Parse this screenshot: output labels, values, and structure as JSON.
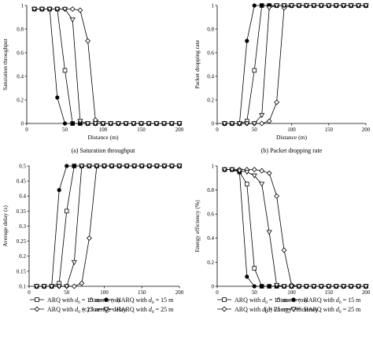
{
  "chart_data": [
    {
      "type": "line",
      "caption": "(a)  Saturation throughput",
      "xlabel": "Distance (m)",
      "ylabel": "Saturation throughput",
      "xlim": [
        0,
        200
      ],
      "ylim": [
        0,
        1
      ],
      "xticks": [
        "0",
        "50",
        "100",
        "150",
        "200"
      ],
      "yticks": [
        "0",
        "0.2",
        "0.4",
        "0.6",
        "0.8",
        "1"
      ],
      "x": [
        10,
        20,
        30,
        40,
        50,
        60,
        70,
        80,
        90,
        100,
        110,
        120,
        130,
        140,
        150,
        160,
        170,
        180,
        190,
        200
      ],
      "series": [
        {
          "marker": "square",
          "values": [
            0.97,
            0.97,
            0.97,
            0.97,
            0.45,
            0.0,
            0.0,
            0.0,
            0.0,
            0.0,
            0.0,
            0.0,
            0.0,
            0.0,
            0.0,
            0.0,
            0.0,
            0.0,
            0.0,
            0.0
          ]
        },
        {
          "marker": "dot",
          "values": [
            0.97,
            0.97,
            0.97,
            0.22,
            0.0,
            0.0,
            0.0,
            0.0,
            0.0,
            0.0,
            0.0,
            0.0,
            0.0,
            0.0,
            0.0,
            0.0,
            0.0,
            0.0,
            0.0,
            0.0
          ]
        },
        {
          "marker": "diamond",
          "values": [
            0.97,
            0.97,
            0.97,
            0.97,
            0.97,
            0.97,
            0.96,
            0.7,
            0.03,
            0.0,
            0.0,
            0.0,
            0.0,
            0.0,
            0.0,
            0.0,
            0.0,
            0.0,
            0.0,
            0.0
          ]
        },
        {
          "marker": "triangle",
          "values": [
            0.97,
            0.97,
            0.97,
            0.97,
            0.97,
            0.88,
            0.02,
            0.0,
            0.0,
            0.0,
            0.0,
            0.0,
            0.0,
            0.0,
            0.0,
            0.0,
            0.0,
            0.0,
            0.0,
            0.0
          ]
        }
      ]
    },
    {
      "type": "line",
      "caption": "(b)  Packet dropping rate",
      "xlabel": "Distance (m)",
      "ylabel": "Packet dropping rate",
      "xlim": [
        0,
        200
      ],
      "ylim": [
        0,
        1
      ],
      "xticks": [
        "0",
        "50",
        "100",
        "150",
        "200"
      ],
      "yticks": [
        "0",
        "0.2",
        "0.4",
        "0.6",
        "0.8",
        "1"
      ],
      "x": [
        10,
        20,
        30,
        40,
        50,
        60,
        70,
        80,
        90,
        100,
        110,
        120,
        130,
        140,
        150,
        160,
        170,
        180,
        190,
        200
      ],
      "series": [
        {
          "marker": "square",
          "values": [
            0.0,
            0.0,
            0.0,
            0.02,
            0.45,
            1.0,
            1.0,
            1.0,
            1.0,
            1.0,
            1.0,
            1.0,
            1.0,
            1.0,
            1.0,
            1.0,
            1.0,
            1.0,
            1.0,
            1.0
          ]
        },
        {
          "marker": "dot",
          "values": [
            0.0,
            0.0,
            0.0,
            0.7,
            1.0,
            1.0,
            1.0,
            1.0,
            1.0,
            1.0,
            1.0,
            1.0,
            1.0,
            1.0,
            1.0,
            1.0,
            1.0,
            1.0,
            1.0,
            1.0
          ]
        },
        {
          "marker": "diamond",
          "values": [
            0.0,
            0.0,
            0.0,
            0.0,
            0.0,
            0.0,
            0.02,
            0.18,
            0.98,
            1.0,
            1.0,
            1.0,
            1.0,
            1.0,
            1.0,
            1.0,
            1.0,
            1.0,
            1.0,
            1.0
          ]
        },
        {
          "marker": "triangle",
          "values": [
            0.0,
            0.0,
            0.0,
            0.0,
            0.0,
            0.07,
            0.98,
            1.0,
            1.0,
            1.0,
            1.0,
            1.0,
            1.0,
            1.0,
            1.0,
            1.0,
            1.0,
            1.0,
            1.0,
            1.0
          ]
        }
      ]
    },
    {
      "type": "line",
      "caption": "(c)  Average delay",
      "xlabel": "Distance (m)",
      "ylabel": "Average delay (s)",
      "xlim": [
        0,
        200
      ],
      "ylim": [
        0.1,
        0.5
      ],
      "xticks": [
        "0",
        "50",
        "100",
        "150",
        "200"
      ],
      "yticks": [
        "0.1",
        "0.15",
        "0.2",
        "0.25",
        "0.3",
        "0.35",
        "0.4",
        "0.45",
        "0.5"
      ],
      "x": [
        10,
        20,
        30,
        40,
        50,
        60,
        70,
        80,
        90,
        100,
        110,
        120,
        130,
        140,
        150,
        160,
        170,
        180,
        190,
        200
      ],
      "series": [
        {
          "marker": "square",
          "values": [
            0.1,
            0.1,
            0.1,
            0.11,
            0.35,
            0.5,
            0.5,
            0.5,
            0.5,
            0.5,
            0.5,
            0.5,
            0.5,
            0.5,
            0.5,
            0.5,
            0.5,
            0.5,
            0.5,
            0.5
          ]
        },
        {
          "marker": "dot",
          "values": [
            0.1,
            0.1,
            0.1,
            0.42,
            0.5,
            0.5,
            0.5,
            0.5,
            0.5,
            0.5,
            0.5,
            0.5,
            0.5,
            0.5,
            0.5,
            0.5,
            0.5,
            0.5,
            0.5,
            0.5
          ]
        },
        {
          "marker": "diamond",
          "values": [
            0.1,
            0.1,
            0.1,
            0.1,
            0.1,
            0.1,
            0.11,
            0.26,
            0.5,
            0.5,
            0.5,
            0.5,
            0.5,
            0.5,
            0.5,
            0.5,
            0.5,
            0.5,
            0.5,
            0.5
          ]
        },
        {
          "marker": "triangle",
          "values": [
            0.1,
            0.1,
            0.1,
            0.1,
            0.1,
            0.18,
            0.5,
            0.5,
            0.5,
            0.5,
            0.5,
            0.5,
            0.5,
            0.5,
            0.5,
            0.5,
            0.5,
            0.5,
            0.5,
            0.5
          ]
        }
      ]
    },
    {
      "type": "line",
      "caption": "(d)  Energy efficiency",
      "xlabel": "Distance (m)",
      "ylabel": "Energy efficiency (%)",
      "xlim": [
        0,
        200
      ],
      "ylim": [
        0,
        1
      ],
      "xticks": [
        "0",
        "50",
        "100",
        "150",
        "200"
      ],
      "yticks": [
        "0",
        "0.2",
        "0.4",
        "0.6",
        "0.8",
        "1"
      ],
      "x": [
        10,
        20,
        30,
        40,
        50,
        60,
        70,
        80,
        90,
        100,
        110,
        120,
        130,
        140,
        150,
        160,
        170,
        180,
        190,
        200
      ],
      "series": [
        {
          "marker": "square",
          "values": [
            0.97,
            0.97,
            0.95,
            0.85,
            0.15,
            0.0,
            0.0,
            0.0,
            0.0,
            0.0,
            0.0,
            0.0,
            0.0,
            0.0,
            0.0,
            0.0,
            0.0,
            0.0,
            0.0,
            0.0
          ]
        },
        {
          "marker": "dot",
          "values": [
            0.97,
            0.97,
            0.95,
            0.08,
            0.0,
            0.0,
            0.0,
            0.0,
            0.0,
            0.0,
            0.0,
            0.0,
            0.0,
            0.0,
            0.0,
            0.0,
            0.0,
            0.0,
            0.0,
            0.0
          ]
        },
        {
          "marker": "diamond",
          "values": [
            0.97,
            0.97,
            0.97,
            0.97,
            0.97,
            0.96,
            0.94,
            0.75,
            0.3,
            0.01,
            0.0,
            0.0,
            0.0,
            0.0,
            0.0,
            0.0,
            0.0,
            0.0,
            0.0,
            0.0
          ]
        },
        {
          "marker": "triangle",
          "values": [
            0.97,
            0.97,
            0.96,
            0.95,
            0.92,
            0.85,
            0.45,
            0.01,
            0.0,
            0.0,
            0.0,
            0.0,
            0.0,
            0.0,
            0.0,
            0.0,
            0.0,
            0.0,
            0.0,
            0.0
          ]
        }
      ]
    }
  ],
  "legends": [
    {
      "items": [
        {
          "marker": "square",
          "prefix": "ARQ with ",
          "sym": "d",
          "sub": "0",
          "suffix": " = 15 m"
        },
        {
          "marker": "diamond",
          "prefix": "ARQ with ",
          "sym": "d",
          "sub": "0",
          "suffix": " = 25 m"
        },
        {
          "marker": "dot",
          "prefix": "HARQ with ",
          "sym": "d",
          "sub": "0",
          "suffix": " = 15 m"
        },
        {
          "marker": "triangle",
          "prefix": "HARQ with ",
          "sym": "d",
          "sub": "0",
          "suffix": " = 25 m"
        }
      ]
    },
    {
      "items": [
        {
          "marker": "square",
          "prefix": "ARQ with ",
          "sym": "d",
          "sub": "0",
          "suffix": " = 15 m"
        },
        {
          "marker": "diamond",
          "prefix": "ARQ with ",
          "sym": "d",
          "sub": "0",
          "suffix": " = 25 m"
        },
        {
          "marker": "dot",
          "prefix": "HARQ with ",
          "sym": "d",
          "sub": "0",
          "suffix": " = 15 m"
        },
        {
          "marker": "triangle",
          "prefix": "HARQ with ",
          "sym": "d",
          "sub": "0",
          "suffix": " = 25 m"
        }
      ]
    }
  ],
  "colors": {
    "line": "#000000",
    "marker_fill": "#ffffff"
  }
}
